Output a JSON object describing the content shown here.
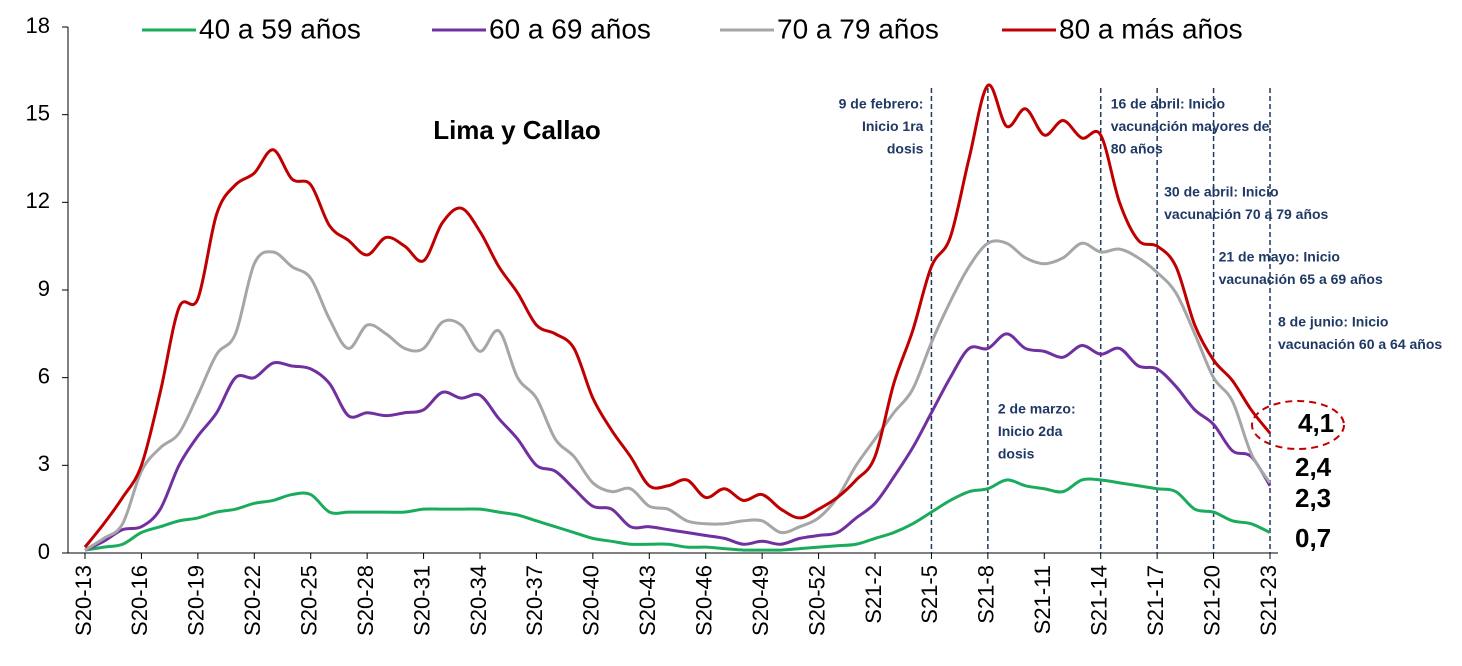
{
  "chart_data": {
    "type": "line",
    "title": "Lima y Callao",
    "categories": [
      "S20-13",
      null,
      null,
      "S20-16",
      null,
      null,
      "S20-19",
      null,
      null,
      "S20-22",
      null,
      null,
      "S20-25",
      null,
      null,
      "S20-28",
      null,
      null,
      "S20-31",
      null,
      null,
      "S20-34",
      null,
      null,
      "S20-37",
      null,
      null,
      "S20-40",
      null,
      null,
      "S20-43",
      null,
      null,
      "S20-46",
      null,
      null,
      "S20-49",
      null,
      null,
      "S20-52",
      null,
      null,
      "S21-2",
      null,
      null,
      "S21-5",
      null,
      null,
      "S21-8",
      null,
      null,
      "S21-11",
      null,
      null,
      "S21-14",
      null,
      null,
      "S21-17",
      null,
      null,
      "S21-20",
      null,
      null,
      "S21-23"
    ],
    "ylim": [
      0,
      18
    ],
    "yticks": [
      0,
      3,
      6,
      9,
      12,
      15,
      18
    ],
    "grid": false,
    "legend": "top",
    "series": [
      {
        "name": "40 a 59 años",
        "color": "#1aac5c",
        "end_label_color": "#1aac5c",
        "values": [
          0.1,
          0.2,
          0.3,
          0.7,
          0.9,
          1.1,
          1.2,
          1.4,
          1.5,
          1.7,
          1.8,
          2.0,
          2.0,
          1.4,
          1.4,
          1.4,
          1.4,
          1.4,
          1.5,
          1.5,
          1.5,
          1.5,
          1.4,
          1.3,
          1.1,
          0.9,
          0.7,
          0.5,
          0.4,
          0.3,
          0.3,
          0.3,
          0.2,
          0.2,
          0.15,
          0.1,
          0.1,
          0.1,
          0.15,
          0.2,
          0.25,
          0.3,
          0.5,
          0.7,
          1.0,
          1.4,
          1.8,
          2.1,
          2.2,
          2.5,
          2.3,
          2.2,
          2.1,
          2.5,
          2.5,
          2.4,
          2.3,
          2.2,
          2.1,
          1.5,
          1.4,
          1.1,
          1.0,
          0.7
        ],
        "value_labels": [
          null,
          null,
          null,
          null,
          null,
          null,
          null,
          null,
          null,
          null,
          null,
          null,
          null,
          null,
          null,
          null,
          null,
          null,
          null,
          null,
          null,
          null,
          null,
          null,
          null,
          null,
          null,
          null,
          null,
          null,
          null,
          null,
          null,
          null,
          null,
          null,
          null,
          null,
          null,
          null,
          null,
          null,
          null,
          null,
          null,
          null,
          null,
          null,
          null,
          null,
          null,
          null,
          null,
          null,
          null,
          null,
          null,
          null,
          null,
          null,
          null,
          null,
          null,
          "0,7"
        ]
      },
      {
        "name": "60 a 69 años",
        "color": "#7030a0",
        "end_label_color": "#7030a0",
        "values": [
          0.1,
          0.4,
          0.8,
          0.9,
          1.5,
          3.0,
          4.0,
          4.8,
          6.0,
          6.0,
          6.5,
          6.4,
          6.3,
          5.8,
          4.7,
          4.8,
          4.7,
          4.8,
          4.9,
          5.5,
          5.3,
          5.4,
          4.6,
          3.9,
          3.0,
          2.8,
          2.2,
          1.6,
          1.5,
          0.9,
          0.9,
          0.8,
          0.7,
          0.6,
          0.5,
          0.3,
          0.4,
          0.3,
          0.5,
          0.6,
          0.7,
          1.2,
          1.7,
          2.6,
          3.6,
          4.8,
          6.0,
          7.0,
          7.0,
          7.5,
          7.0,
          6.9,
          6.7,
          7.1,
          6.8,
          7.0,
          6.4,
          6.3,
          5.7,
          4.9,
          4.4,
          3.5,
          3.3,
          2.3
        ],
        "value_labels": [
          null,
          null,
          null,
          null,
          null,
          null,
          null,
          null,
          null,
          null,
          null,
          null,
          null,
          null,
          null,
          null,
          null,
          null,
          null,
          null,
          null,
          null,
          null,
          null,
          null,
          null,
          null,
          null,
          null,
          null,
          null,
          null,
          null,
          null,
          null,
          null,
          null,
          null,
          null,
          null,
          null,
          null,
          null,
          null,
          null,
          null,
          null,
          null,
          null,
          null,
          null,
          null,
          null,
          null,
          null,
          null,
          null,
          null,
          null,
          null,
          null,
          null,
          null,
          "2,3"
        ]
      },
      {
        "name": "70 a 79 años",
        "color": "#a6a6a6",
        "end_label_color": "#000000",
        "values": [
          0.1,
          0.5,
          1.0,
          2.8,
          3.6,
          4.1,
          5.4,
          6.8,
          7.5,
          9.9,
          10.3,
          9.8,
          9.4,
          8.0,
          7.0,
          7.8,
          7.5,
          7.0,
          7.0,
          7.9,
          7.8,
          6.9,
          7.6,
          6.0,
          5.3,
          3.9,
          3.3,
          2.4,
          2.1,
          2.2,
          1.6,
          1.5,
          1.1,
          1.0,
          1.0,
          1.1,
          1.1,
          0.7,
          0.9,
          1.2,
          1.9,
          3.0,
          3.9,
          4.8,
          5.6,
          7.2,
          8.6,
          9.8,
          10.6,
          10.6,
          10.1,
          9.9,
          10.1,
          10.6,
          10.3,
          10.4,
          10.1,
          9.6,
          8.9,
          7.5,
          6.0,
          5.2,
          3.4,
          2.4
        ],
        "value_labels": [
          null,
          null,
          null,
          null,
          null,
          null,
          null,
          null,
          null,
          null,
          null,
          null,
          null,
          null,
          null,
          null,
          null,
          null,
          null,
          null,
          null,
          null,
          null,
          null,
          null,
          null,
          null,
          null,
          null,
          null,
          null,
          null,
          null,
          null,
          null,
          null,
          null,
          null,
          null,
          null,
          null,
          null,
          null,
          null,
          null,
          null,
          null,
          null,
          null,
          null,
          null,
          null,
          null,
          null,
          null,
          null,
          null,
          null,
          null,
          null,
          null,
          null,
          null,
          "2,4"
        ]
      },
      {
        "name": "80 a más años",
        "color": "#c00000",
        "end_label_color": "#c00000",
        "values": [
          0.2,
          1.0,
          1.9,
          3.0,
          5.5,
          8.4,
          8.7,
          11.6,
          12.6,
          13.0,
          13.8,
          12.8,
          12.6,
          11.2,
          10.7,
          10.2,
          10.8,
          10.5,
          10.0,
          11.3,
          11.8,
          11.0,
          9.8,
          8.9,
          7.8,
          7.5,
          7.0,
          5.3,
          4.2,
          3.3,
          2.3,
          2.3,
          2.5,
          1.9,
          2.2,
          1.8,
          2.0,
          1.5,
          1.2,
          1.5,
          1.9,
          2.5,
          3.3,
          5.8,
          7.6,
          9.8,
          10.8,
          13.5,
          16.0,
          14.6,
          15.2,
          14.3,
          14.8,
          14.2,
          14.3,
          12.0,
          10.7,
          10.5,
          9.8,
          7.8,
          6.6,
          5.9,
          4.9,
          4.1
        ],
        "value_labels": [
          null,
          null,
          null,
          null,
          null,
          null,
          null,
          null,
          null,
          null,
          null,
          null,
          null,
          null,
          null,
          null,
          null,
          null,
          null,
          null,
          null,
          null,
          null,
          null,
          null,
          null,
          null,
          null,
          null,
          null,
          null,
          null,
          null,
          null,
          null,
          null,
          null,
          null,
          null,
          null,
          null,
          null,
          null,
          null,
          null,
          null,
          null,
          null,
          null,
          null,
          null,
          null,
          null,
          null,
          null,
          null,
          null,
          null,
          null,
          null,
          null,
          null,
          null,
          "4,1"
        ]
      }
    ],
    "annotations": [
      {
        "x": "S21-5",
        "lines": [
          "9 de febrero:",
          "Inicio 1ra",
          "dosis"
        ]
      },
      {
        "x": "S21-8",
        "lines": [
          "2 de marzo:",
          "Inicio 2da",
          "dosis"
        ]
      },
      {
        "x": "S21-14",
        "lines": [
          "16 de abril: Inicio",
          "vacunación mayores de",
          "80 años"
        ]
      },
      {
        "x": "S21-17",
        "lines": [
          "30 de abril: Inicio",
          "vacunación 70 a 79 años"
        ]
      },
      {
        "x": "S21-20",
        "lines": [
          "21 de mayo: Inicio",
          "vacunación 65 a 69 años"
        ]
      },
      {
        "x": "S21-23",
        "lines": [
          "8 de junio: Inicio",
          "vacunación 60 a 64 años"
        ]
      }
    ]
  }
}
